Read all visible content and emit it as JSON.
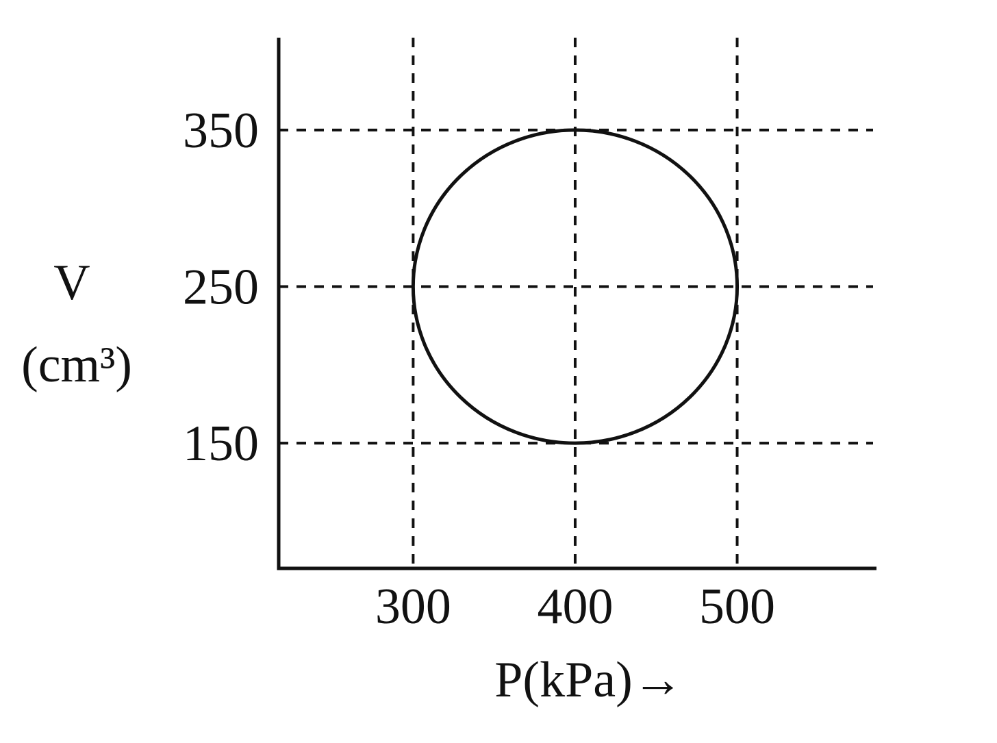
{
  "chart_data": {
    "type": "cycle",
    "xlabel": "P(kPa)→",
    "ylabel": "V",
    "yunit": "(cm³)",
    "x": [
      300,
      400,
      500,
      400
    ],
    "y": [
      250,
      350,
      250,
      150
    ],
    "color": "#111111",
    "xlim": [
      217,
      586
    ],
    "ylim": [
      70,
      409
    ],
    "xticks": [
      300,
      400,
      500
    ],
    "yticks": [
      150,
      250,
      350
    ],
    "grid": true
  }
}
